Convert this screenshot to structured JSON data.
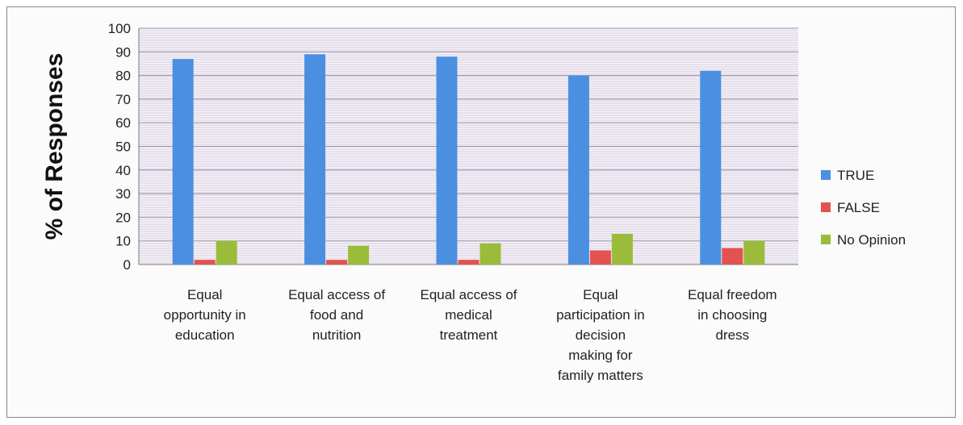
{
  "chart_data": {
    "type": "bar",
    "ylabel": "% of Responses",
    "ylim": [
      0,
      100
    ],
    "yticks": [
      0,
      10,
      20,
      30,
      40,
      50,
      60,
      70,
      80,
      90,
      100
    ],
    "grid": true,
    "legend_position": "right",
    "categories": [
      [
        "Equal",
        "opportunity in",
        "education"
      ],
      [
        "Equal access of",
        "food and",
        "nutrition"
      ],
      [
        "Equal access of",
        "medical",
        "treatment"
      ],
      [
        "Equal",
        "participation in",
        "decision",
        "making for",
        "family matters"
      ],
      [
        "Equal freedom",
        "in choosing",
        "dress"
      ]
    ],
    "series": [
      {
        "name": "TRUE",
        "color": "#4a8fe0",
        "values": [
          87,
          89,
          88,
          80,
          82
        ]
      },
      {
        "name": "FALSE",
        "color": "#e4524f",
        "values": [
          2,
          2,
          2,
          6,
          7
        ]
      },
      {
        "name": "No Opinion",
        "color": "#9bbb3b",
        "values": [
          10,
          8,
          9,
          13,
          10
        ]
      }
    ]
  }
}
